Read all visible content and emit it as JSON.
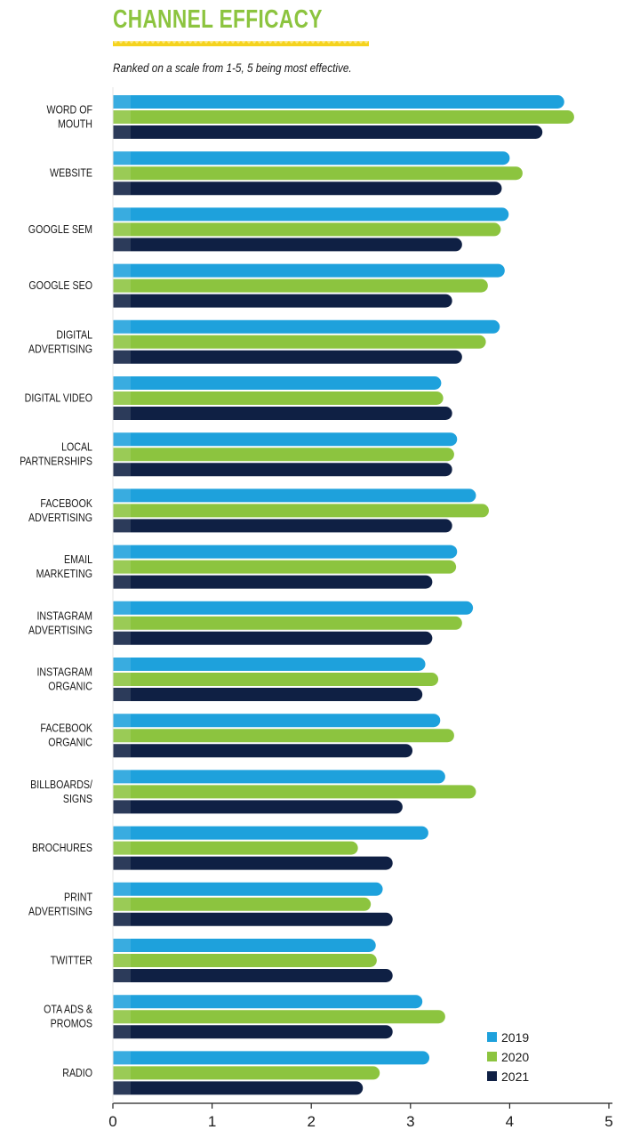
{
  "chart_data": {
    "type": "bar",
    "orientation": "horizontal",
    "title": "CHANNEL EFFICACY",
    "subtitle": "Ranked on a scale from 1-5, 5 being most effective.",
    "categories": [
      [
        "WORD OF",
        "MOUTH"
      ],
      [
        "WEBSITE"
      ],
      [
        "GOOGLE SEM"
      ],
      [
        "GOOGLE SEO"
      ],
      [
        "DIGITAL",
        "ADVERTISING"
      ],
      [
        "DIGITAL VIDEO"
      ],
      [
        "LOCAL",
        "PARTNERSHIPS"
      ],
      [
        "FACEBOOK",
        "ADVERTISING"
      ],
      [
        "EMAIL",
        "MARKETING"
      ],
      [
        "INSTAGRAM",
        "ADVERTISING"
      ],
      [
        "INSTAGRAM",
        "ORGANIC"
      ],
      [
        "FACEBOOK",
        "ORGANIC"
      ],
      [
        "BILLBOARDS/",
        "SIGNS"
      ],
      [
        "BROCHURES"
      ],
      [
        "PRINT",
        "ADVERTISING"
      ],
      [
        "TWITTER"
      ],
      [
        "OTA ADS &",
        "PROMOS"
      ],
      [
        "RADIO"
      ]
    ],
    "series": [
      {
        "name": "2019",
        "color": "#1ea1dc",
        "values": [
          4.55,
          4.0,
          3.99,
          3.95,
          3.9,
          3.31,
          3.47,
          3.66,
          3.47,
          3.63,
          3.15,
          3.3,
          3.35,
          3.18,
          2.72,
          2.65,
          3.12,
          3.19
        ]
      },
      {
        "name": "2020",
        "color": "#8cc43f",
        "values": [
          4.65,
          4.13,
          3.91,
          3.78,
          3.76,
          3.33,
          3.44,
          3.79,
          3.46,
          3.52,
          3.28,
          3.44,
          3.66,
          2.47,
          2.6,
          2.66,
          3.35,
          2.69
        ]
      },
      {
        "name": "2021",
        "color": "#0f2044",
        "values": [
          4.33,
          3.92,
          3.52,
          3.42,
          3.52,
          3.42,
          3.42,
          3.42,
          3.22,
          3.22,
          3.12,
          3.02,
          2.92,
          2.82,
          2.82,
          2.82,
          2.82,
          2.52
        ]
      }
    ],
    "xlim": [
      0,
      5
    ],
    "xticks": [
      "0",
      "1",
      "2",
      "3",
      "4",
      "5"
    ],
    "legend_position": "bottom-right",
    "grid": false
  },
  "colors": {
    "title": "#8cc43f",
    "title_rule": "#f5d31e",
    "axis": "#222222"
  }
}
